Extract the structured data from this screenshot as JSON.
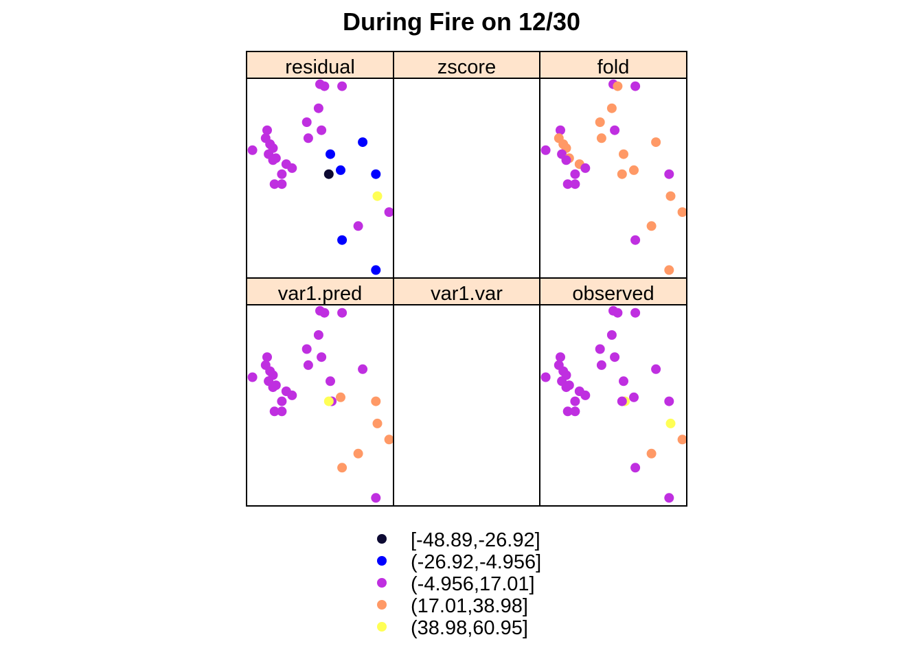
{
  "chart_data": {
    "type": "scatter",
    "title": "During Fire on 12/30",
    "colors": {
      "strip_background": "#FFE4CC",
      "class_colors": [
        "#0D0A33",
        "#0000FF",
        "#BF2FE0",
        "#FF9966",
        "#FFFF55"
      ]
    },
    "legend": {
      "placement": "bottom",
      "entries": [
        "[-48.89,-26.92]",
        "(-26.92,-4.956]",
        "(-4.956,17.01]",
        "(17.01,38.98]",
        "(38.98,60.95]"
      ]
    },
    "panels": [
      {
        "name": "residual",
        "points": [
          [
            0.5,
            0.97,
            2
          ],
          [
            0.53,
            0.96,
            2
          ],
          [
            0.65,
            0.96,
            2
          ],
          [
            0.49,
            0.85,
            2
          ],
          [
            0.41,
            0.78,
            2
          ],
          [
            0.51,
            0.74,
            2
          ],
          [
            0.42,
            0.7,
            2
          ],
          [
            0.14,
            0.74,
            2
          ],
          [
            0.13,
            0.7,
            2
          ],
          [
            0.16,
            0.67,
            2
          ],
          [
            0.18,
            0.65,
            2
          ],
          [
            0.04,
            0.64,
            2
          ],
          [
            0.15,
            0.62,
            2
          ],
          [
            0.2,
            0.6,
            2
          ],
          [
            0.18,
            0.59,
            2
          ],
          [
            0.27,
            0.57,
            2
          ],
          [
            0.31,
            0.55,
            2
          ],
          [
            0.24,
            0.52,
            2
          ],
          [
            0.19,
            0.47,
            2
          ],
          [
            0.24,
            0.47,
            2
          ],
          [
            0.57,
            0.62,
            1
          ],
          [
            0.79,
            0.68,
            1
          ],
          [
            0.64,
            0.54,
            1
          ],
          [
            0.56,
            0.52,
            0
          ],
          [
            0.88,
            0.52,
            1
          ],
          [
            0.89,
            0.41,
            4
          ],
          [
            0.97,
            0.33,
            2
          ],
          [
            0.76,
            0.26,
            2
          ],
          [
            0.65,
            0.19,
            1
          ],
          [
            0.88,
            0.04,
            1
          ]
        ]
      },
      {
        "name": "zscore",
        "points": []
      },
      {
        "name": "fold",
        "points": [
          [
            0.5,
            0.97,
            2
          ],
          [
            0.53,
            0.96,
            3
          ],
          [
            0.65,
            0.96,
            2
          ],
          [
            0.49,
            0.85,
            3
          ],
          [
            0.41,
            0.78,
            3
          ],
          [
            0.51,
            0.74,
            2
          ],
          [
            0.42,
            0.7,
            3
          ],
          [
            0.14,
            0.74,
            2
          ],
          [
            0.13,
            0.7,
            3
          ],
          [
            0.16,
            0.67,
            3
          ],
          [
            0.18,
            0.65,
            3
          ],
          [
            0.04,
            0.64,
            2
          ],
          [
            0.15,
            0.62,
            2
          ],
          [
            0.2,
            0.6,
            3
          ],
          [
            0.18,
            0.59,
            2
          ],
          [
            0.27,
            0.57,
            3
          ],
          [
            0.31,
            0.55,
            2
          ],
          [
            0.24,
            0.52,
            2
          ],
          [
            0.19,
            0.47,
            2
          ],
          [
            0.24,
            0.47,
            2
          ],
          [
            0.57,
            0.62,
            3
          ],
          [
            0.79,
            0.68,
            3
          ],
          [
            0.64,
            0.54,
            3
          ],
          [
            0.56,
            0.52,
            3
          ],
          [
            0.88,
            0.52,
            2
          ],
          [
            0.89,
            0.41,
            3
          ],
          [
            0.97,
            0.33,
            3
          ],
          [
            0.76,
            0.26,
            3
          ],
          [
            0.65,
            0.19,
            2
          ],
          [
            0.88,
            0.04,
            3
          ]
        ]
      },
      {
        "name": "var1.pred",
        "points": [
          [
            0.5,
            0.97,
            2
          ],
          [
            0.53,
            0.96,
            2
          ],
          [
            0.65,
            0.96,
            2
          ],
          [
            0.49,
            0.85,
            2
          ],
          [
            0.41,
            0.78,
            2
          ],
          [
            0.51,
            0.74,
            2
          ],
          [
            0.42,
            0.7,
            2
          ],
          [
            0.14,
            0.74,
            2
          ],
          [
            0.13,
            0.7,
            2
          ],
          [
            0.16,
            0.67,
            2
          ],
          [
            0.18,
            0.65,
            2
          ],
          [
            0.04,
            0.64,
            2
          ],
          [
            0.15,
            0.62,
            2
          ],
          [
            0.2,
            0.6,
            2
          ],
          [
            0.18,
            0.59,
            2
          ],
          [
            0.27,
            0.57,
            2
          ],
          [
            0.31,
            0.55,
            2
          ],
          [
            0.24,
            0.52,
            2
          ],
          [
            0.19,
            0.47,
            2
          ],
          [
            0.24,
            0.47,
            2
          ],
          [
            0.57,
            0.62,
            2
          ],
          [
            0.79,
            0.68,
            2
          ],
          [
            0.64,
            0.54,
            3
          ],
          [
            0.58,
            0.52,
            2
          ],
          [
            0.56,
            0.52,
            4
          ],
          [
            0.88,
            0.52,
            3
          ],
          [
            0.89,
            0.41,
            3
          ],
          [
            0.97,
            0.33,
            3
          ],
          [
            0.76,
            0.26,
            3
          ],
          [
            0.65,
            0.19,
            3
          ],
          [
            0.88,
            0.04,
            2
          ]
        ]
      },
      {
        "name": "var1.var",
        "points": []
      },
      {
        "name": "observed",
        "points": [
          [
            0.5,
            0.97,
            2
          ],
          [
            0.53,
            0.96,
            2
          ],
          [
            0.65,
            0.96,
            2
          ],
          [
            0.49,
            0.85,
            2
          ],
          [
            0.41,
            0.78,
            2
          ],
          [
            0.51,
            0.74,
            2
          ],
          [
            0.42,
            0.7,
            2
          ],
          [
            0.14,
            0.74,
            2
          ],
          [
            0.13,
            0.7,
            2
          ],
          [
            0.16,
            0.67,
            2
          ],
          [
            0.18,
            0.65,
            2
          ],
          [
            0.04,
            0.64,
            2
          ],
          [
            0.15,
            0.62,
            2
          ],
          [
            0.2,
            0.6,
            2
          ],
          [
            0.18,
            0.59,
            2
          ],
          [
            0.27,
            0.57,
            2
          ],
          [
            0.31,
            0.55,
            2
          ],
          [
            0.24,
            0.52,
            2
          ],
          [
            0.19,
            0.47,
            2
          ],
          [
            0.24,
            0.47,
            2
          ],
          [
            0.57,
            0.62,
            2
          ],
          [
            0.79,
            0.68,
            2
          ],
          [
            0.64,
            0.54,
            2
          ],
          [
            0.58,
            0.52,
            4
          ],
          [
            0.56,
            0.52,
            2
          ],
          [
            0.88,
            0.52,
            2
          ],
          [
            0.89,
            0.41,
            4
          ],
          [
            0.97,
            0.33,
            3
          ],
          [
            0.76,
            0.26,
            3
          ],
          [
            0.65,
            0.19,
            2
          ],
          [
            0.88,
            0.04,
            2
          ]
        ]
      }
    ]
  }
}
